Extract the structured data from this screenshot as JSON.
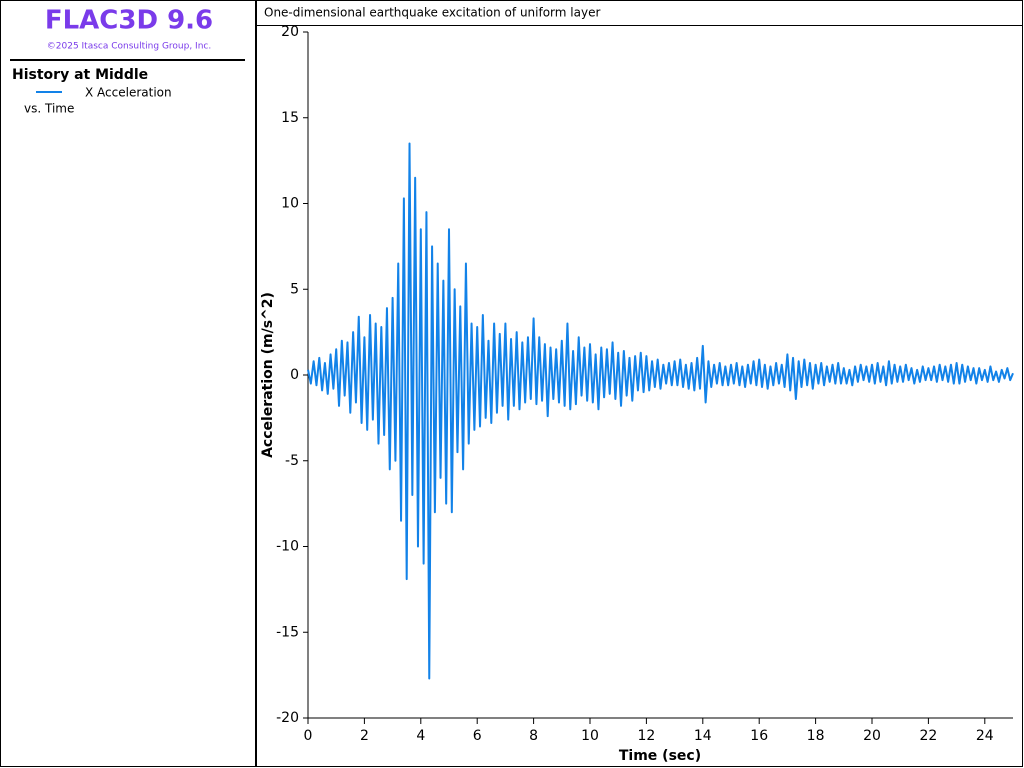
{
  "app": {
    "title": "FLAC3D 9.6",
    "copyright": "©2025 Itasca Consulting Group, Inc."
  },
  "side_panel": {
    "heading": "History at Middle",
    "versus": "vs. Time"
  },
  "chart_data": {
    "type": "line",
    "title": "One-dimensional earthquake excitation of uniform layer",
    "x_label": "Time (sec)",
    "y_label": "Acceleration (m/s^2)",
    "xlim": [
      0,
      25
    ],
    "ylim": [
      -20,
      20
    ],
    "xticks": [
      0,
      2,
      4,
      6,
      8,
      10,
      12,
      14,
      16,
      18,
      20,
      22,
      24
    ],
    "yticks": [
      -20,
      -15,
      -10,
      -5,
      0,
      5,
      10,
      15,
      20
    ],
    "x": [
      0,
      0.1,
      0.2,
      0.3,
      0.4,
      0.5,
      0.6,
      0.7,
      0.8,
      0.9,
      1,
      1.1,
      1.2,
      1.3,
      1.4,
      1.5,
      1.6,
      1.7,
      1.8,
      1.9,
      2,
      2.1,
      2.2,
      2.3,
      2.4,
      2.5,
      2.6,
      2.7,
      2.8,
      2.9,
      3,
      3.1,
      3.2,
      3.3,
      3.4,
      3.5,
      3.6,
      3.7,
      3.8,
      3.9,
      4,
      4.1,
      4.2,
      4.3,
      4.4,
      4.5,
      4.6,
      4.7,
      4.8,
      4.9,
      5,
      5.1,
      5.2,
      5.3,
      5.4,
      5.5,
      5.6,
      5.7,
      5.8,
      5.9,
      6,
      6.1,
      6.2,
      6.3,
      6.4,
      6.5,
      6.6,
      6.7,
      6.8,
      6.9,
      7,
      7.1,
      7.2,
      7.3,
      7.4,
      7.5,
      7.6,
      7.7,
      7.8,
      7.9,
      8,
      8.1,
      8.2,
      8.3,
      8.4,
      8.5,
      8.6,
      8.7,
      8.8,
      8.9,
      9,
      9.1,
      9.2,
      9.3,
      9.4,
      9.5,
      9.6,
      9.7,
      9.8,
      9.9,
      10,
      10.1,
      10.2,
      10.3,
      10.4,
      10.5,
      10.6,
      10.7,
      10.8,
      10.9,
      11,
      11.1,
      11.2,
      11.3,
      11.4,
      11.5,
      11.6,
      11.7,
      11.8,
      11.9,
      12,
      12.1,
      12.2,
      12.3,
      12.4,
      12.5,
      12.6,
      12.7,
      12.8,
      12.9,
      13,
      13.1,
      13.2,
      13.3,
      13.4,
      13.5,
      13.6,
      13.7,
      13.8,
      13.9,
      14,
      14.1,
      14.2,
      14.3,
      14.4,
      14.5,
      14.6,
      14.7,
      14.8,
      14.9,
      15,
      15.1,
      15.2,
      15.3,
      15.4,
      15.5,
      15.6,
      15.7,
      15.8,
      15.9,
      16,
      16.1,
      16.2,
      16.3,
      16.4,
      16.5,
      16.6,
      16.7,
      16.8,
      16.9,
      17,
      17.1,
      17.2,
      17.3,
      17.4,
      17.5,
      17.6,
      17.7,
      17.8,
      17.9,
      18,
      18.1,
      18.2,
      18.3,
      18.4,
      18.5,
      18.6,
      18.7,
      18.8,
      18.9,
      19,
      19.1,
      19.2,
      19.3,
      19.4,
      19.5,
      19.6,
      19.7,
      19.8,
      19.9,
      20,
      20.1,
      20.2,
      20.3,
      20.4,
      20.5,
      20.6,
      20.7,
      20.8,
      20.9,
      21,
      21.1,
      21.2,
      21.3,
      21.4,
      21.5,
      21.6,
      21.7,
      21.8,
      21.9,
      22,
      22.1,
      22.2,
      22.3,
      22.4,
      22.5,
      22.6,
      22.7,
      22.8,
      22.9,
      23,
      23.1,
      23.2,
      23.3,
      23.4,
      23.5,
      23.6,
      23.7,
      23.8,
      23.9,
      24,
      24.1,
      24.2,
      24.3,
      24.4,
      24.5,
      24.6,
      24.7,
      24.8,
      24.9,
      25
    ],
    "series": [
      {
        "name": "X Acceleration",
        "color": "#1282e8",
        "values": [
          0.3,
          -0.5,
          0.8,
          -0.6,
          1.0,
          -0.9,
          0.7,
          -1.1,
          1.2,
          -0.8,
          1.5,
          -1.8,
          2.0,
          -1.2,
          1.9,
          -2.2,
          2.5,
          -1.6,
          3.4,
          -2.8,
          2.2,
          -3.2,
          3.5,
          -2.6,
          3.0,
          -4.0,
          2.8,
          -3.5,
          3.9,
          -5.5,
          4.5,
          -5.0,
          6.5,
          -8.5,
          10.3,
          -11.9,
          13.5,
          -7.0,
          11.5,
          -10.0,
          8.5,
          -11.0,
          9.5,
          -17.7,
          7.5,
          -8.0,
          6.5,
          -6.0,
          5.5,
          -7.5,
          8.5,
          -8.0,
          5.0,
          -4.5,
          4.0,
          -5.5,
          6.5,
          -4.0,
          3.0,
          -3.2,
          2.8,
          -3.0,
          3.5,
          -2.5,
          2.0,
          -2.8,
          3.0,
          -2.2,
          2.4,
          -1.8,
          3.0,
          -2.6,
          2.1,
          -1.8,
          2.5,
          -2.0,
          1.9,
          -1.6,
          2.2,
          -1.4,
          3.3,
          -1.7,
          2.2,
          -1.5,
          1.8,
          -2.4,
          1.6,
          -1.4,
          1.5,
          -1.6,
          2.0,
          -1.8,
          3.0,
          -2.0,
          1.4,
          -1.7,
          2.2,
          -1.2,
          1.6,
          -1.5,
          1.8,
          -1.6,
          1.2,
          -2.0,
          1.6,
          -1.3,
          1.5,
          -1.1,
          1.9,
          -1.4,
          1.3,
          -1.8,
          1.4,
          -1.2,
          1.0,
          -1.5,
          1.1,
          -0.9,
          1.3,
          -1.0,
          1.1,
          -0.9,
          0.8,
          -0.7,
          0.9,
          -0.8,
          0.6,
          -0.5,
          0.7,
          -0.6,
          0.8,
          -0.6,
          0.9,
          -0.7,
          0.6,
          -0.8,
          0.7,
          -0.9,
          1.0,
          -0.8,
          1.7,
          -1.6,
          0.8,
          -0.7,
          0.6,
          -0.5,
          0.7,
          -0.6,
          0.5,
          -0.6,
          0.6,
          -0.5,
          0.7,
          -0.6,
          0.5,
          -0.7,
          0.6,
          -0.5,
          0.8,
          -0.6,
          0.9,
          -0.7,
          0.6,
          -0.8,
          0.5,
          -0.6,
          0.7,
          -0.5,
          0.6,
          -0.7,
          1.2,
          -0.9,
          1.0,
          -1.4,
          0.8,
          -0.7,
          0.9,
          -0.6,
          0.7,
          -0.8,
          0.6,
          -0.5,
          0.7,
          -0.6,
          0.5,
          -0.4,
          0.6,
          -0.5,
          0.7,
          -0.5,
          0.4,
          -0.5,
          0.3,
          -0.6,
          0.5,
          -0.4,
          0.6,
          -0.3,
          0.5,
          -0.4,
          0.6,
          -0.5,
          0.7,
          -0.4,
          0.5,
          -0.6,
          0.8,
          -0.5,
          0.6,
          -0.4,
          0.5,
          -0.4,
          0.6,
          -0.3,
          0.4,
          -0.5,
          0.3,
          -0.4,
          0.5,
          -0.3,
          0.4,
          -0.3,
          0.5,
          -0.4,
          0.6,
          -0.3,
          0.5,
          -0.4,
          0.6,
          -0.5,
          0.7,
          -0.5,
          0.6,
          -0.4,
          0.5,
          -0.3,
          0.4,
          -0.5,
          0.4,
          -0.3,
          0.3,
          -0.4,
          0.5,
          -0.3,
          0.2,
          -0.4,
          0.3,
          -0.2,
          0.4,
          -0.3,
          0.1
        ]
      }
    ]
  }
}
